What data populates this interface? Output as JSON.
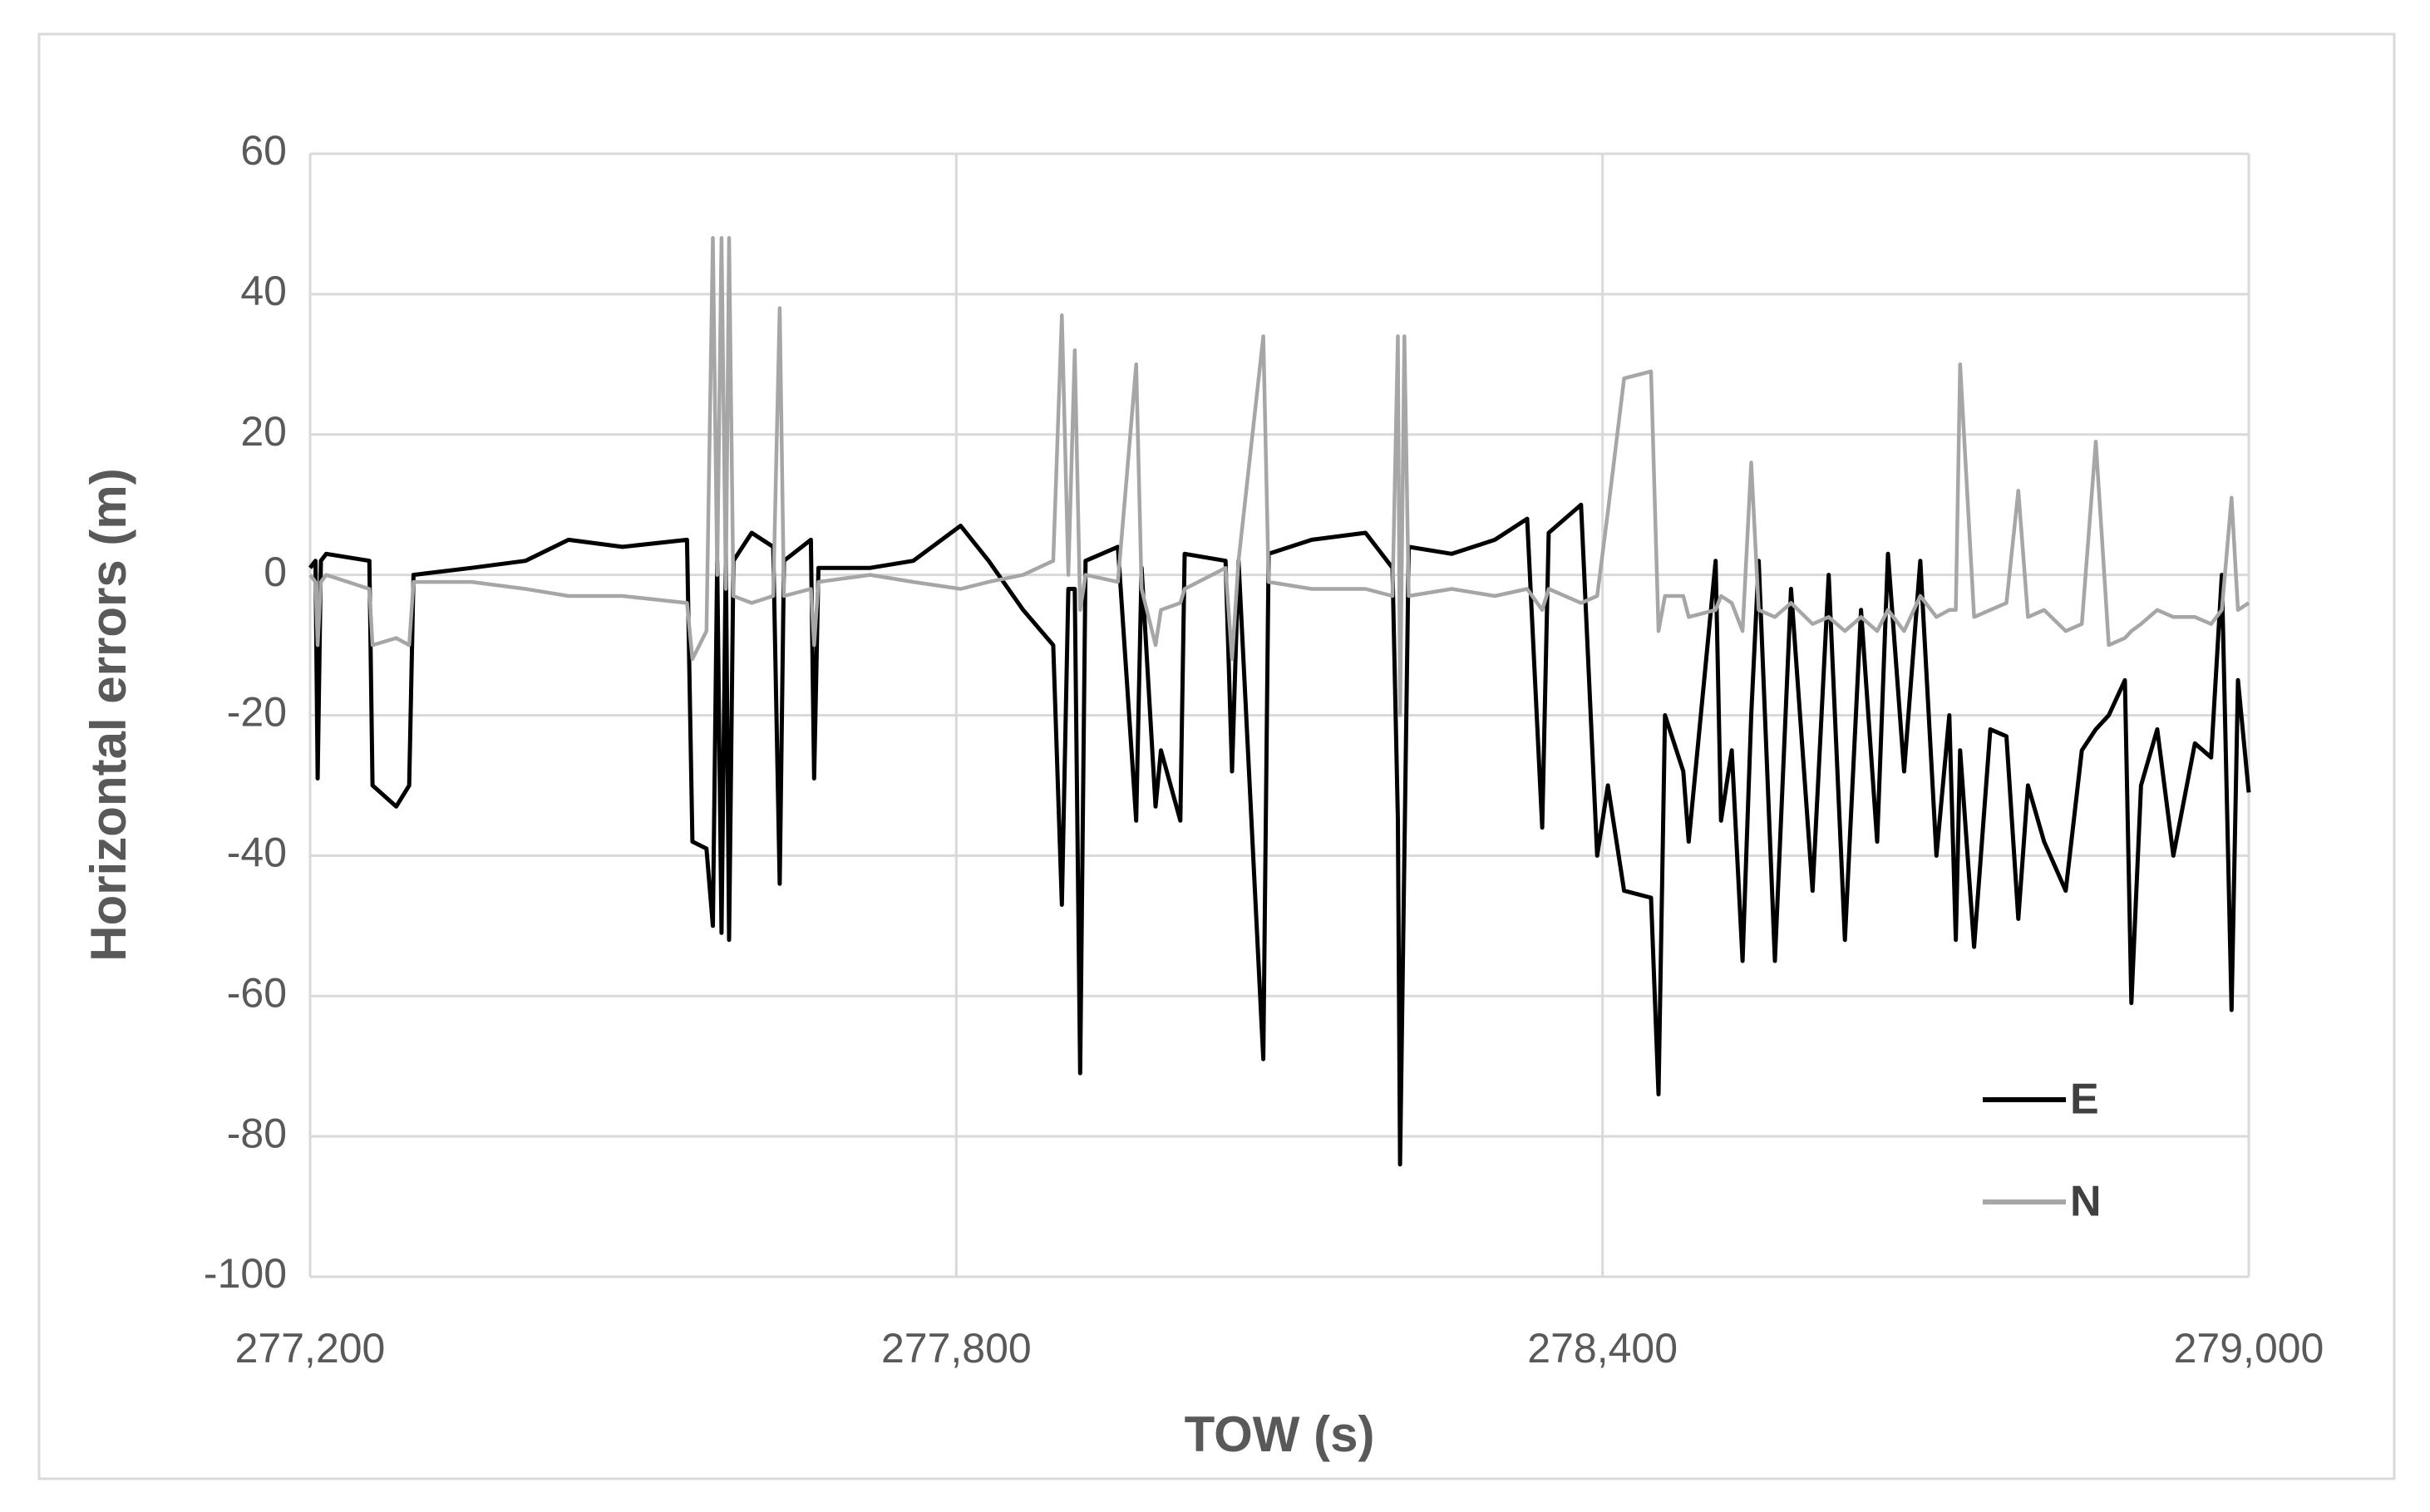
{
  "chart_data": {
    "type": "line",
    "x_label": "TOW (s)",
    "y_label": "Horizontal errors (m)",
    "xlim": [
      277200,
      279000
    ],
    "xticks": [
      {
        "value": 277200,
        "label": "277,200"
      },
      {
        "value": 277800,
        "label": "277,800"
      },
      {
        "value": 278400,
        "label": "278,400"
      },
      {
        "value": 279000,
        "label": "279,000"
      }
    ],
    "ylim": [
      -100,
      60
    ],
    "yticks": [
      -100,
      -80,
      -60,
      -40,
      -20,
      0,
      20,
      40,
      60
    ],
    "grid": true,
    "legend": "lower right",
    "x": [
      277200,
      277205,
      277207,
      277210,
      277215,
      277255,
      277258,
      277280,
      277292,
      277296,
      277350,
      277400,
      277440,
      277490,
      277550,
      277555,
      277568,
      277574,
      277578,
      277582,
      277586,
      277589,
      277593,
      277610,
      277630,
      277636,
      277640,
      277665,
      277668,
      277672,
      277720,
      277760,
      277804,
      277830,
      277862,
      277890,
      277898,
      277904,
      277910,
      277915,
      277920,
      277950,
      277967,
      277972,
      277985,
      277990,
      278008,
      278012,
      278050,
      278056,
      278062,
      278085,
      278090,
      278130,
      278180,
      278205,
      278210,
      278212,
      278216,
      278220,
      278260,
      278300,
      278330,
      278344,
      278350,
      278380,
      278395,
      278405,
      278420,
      278445,
      278452,
      278458,
      278475,
      278480,
      278505,
      278510,
      278520,
      278530,
      278538,
      278545,
      278560,
      278575,
      278595,
      278610,
      278625,
      278640,
      278655,
      278665,
      278680,
      278695,
      278710,
      278722,
      278728,
      278732,
      278745,
      278760,
      278775,
      278786,
      278795,
      278810,
      278830,
      278845,
      278858,
      278870,
      278885,
      278891,
      278900,
      278915,
      278930,
      278950,
      278965,
      278975,
      278984,
      278990,
      279000
    ],
    "series": [
      {
        "name": "E",
        "color": "#000000",
        "values": [
          1,
          2,
          -29,
          2,
          3,
          2,
          -30,
          -33,
          -30,
          0,
          1,
          2,
          5,
          4,
          5,
          -38,
          -39,
          -50,
          2,
          -51,
          3,
          -52,
          2,
          6,
          4,
          -44,
          2,
          5,
          -29,
          1,
          1,
          2,
          7,
          2,
          -5,
          -10,
          -47,
          -2,
          -2,
          -71,
          2,
          4,
          -35,
          1,
          -33,
          -25,
          -35,
          3,
          2,
          -28,
          2,
          -69,
          3,
          5,
          6,
          1,
          -35,
          -84,
          -40,
          4,
          3,
          5,
          8,
          -36,
          6,
          10,
          -40,
          -30,
          -45,
          -46,
          -74,
          -20,
          -28,
          -38,
          2,
          -35,
          -25,
          -55,
          -20,
          2,
          -55,
          -2,
          -45,
          0,
          -52,
          -5,
          -38,
          3,
          -28,
          2,
          -40,
          -20,
          -52,
          -25,
          -53,
          -22,
          -23,
          -49,
          -30,
          -38,
          -45,
          -25,
          -22,
          -20,
          -15,
          -61,
          -30,
          -22,
          -40,
          -24,
          -26,
          0,
          -62,
          -15,
          -31
        ]
      },
      {
        "name": "N",
        "color": "#a6a6a6",
        "values": [
          0,
          -1,
          -10,
          -1,
          0,
          -2,
          -10,
          -9,
          -10,
          -1,
          -1,
          -2,
          -3,
          -3,
          -4,
          -12,
          -8,
          48,
          0,
          48,
          -2,
          48,
          -3,
          -4,
          -3,
          38,
          -3,
          -2,
          -10,
          -1,
          0,
          -1,
          -2,
          -1,
          0,
          2,
          37,
          0,
          32,
          -5,
          0,
          -1,
          30,
          -2,
          -10,
          -5,
          -4,
          -2,
          1,
          -12,
          2,
          34,
          -1,
          -2,
          -2,
          -3,
          34,
          -20,
          34,
          -3,
          -2,
          -3,
          -2,
          -5,
          -2,
          -4,
          -3,
          9,
          28,
          29,
          -8,
          -3,
          -3,
          -6,
          -5,
          -3,
          -4,
          -8,
          16,
          -5,
          -6,
          -4,
          -7,
          -6,
          -8,
          -6,
          -8,
          -5,
          -8,
          -3,
          -6,
          -5,
          -5,
          30,
          -6,
          -5,
          -4,
          12,
          -6,
          -5,
          -8,
          -7,
          19,
          -10,
          -9,
          -8,
          -7,
          -5,
          -6,
          -6,
          -7,
          -5,
          11,
          -5,
          -4
        ]
      }
    ]
  }
}
